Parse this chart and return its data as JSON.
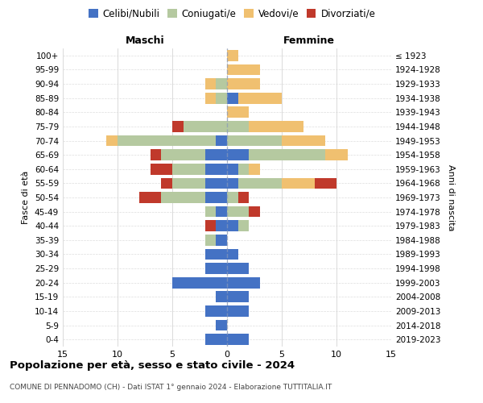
{
  "age_groups": [
    "0-4",
    "5-9",
    "10-14",
    "15-19",
    "20-24",
    "25-29",
    "30-34",
    "35-39",
    "40-44",
    "45-49",
    "50-54",
    "55-59",
    "60-64",
    "65-69",
    "70-74",
    "75-79",
    "80-84",
    "85-89",
    "90-94",
    "95-99",
    "100+"
  ],
  "birth_years": [
    "2019-2023",
    "2014-2018",
    "2009-2013",
    "2004-2008",
    "1999-2003",
    "1994-1998",
    "1989-1993",
    "1984-1988",
    "1979-1983",
    "1974-1978",
    "1969-1973",
    "1964-1968",
    "1959-1963",
    "1954-1958",
    "1949-1953",
    "1944-1948",
    "1939-1943",
    "1934-1938",
    "1929-1933",
    "1924-1928",
    "≤ 1923"
  ],
  "maschi": {
    "celibi": [
      2,
      1,
      2,
      1,
      5,
      2,
      2,
      1,
      1,
      1,
      2,
      2,
      2,
      2,
      1,
      0,
      0,
      0,
      0,
      0,
      0
    ],
    "coniugati": [
      0,
      0,
      0,
      0,
      0,
      0,
      0,
      1,
      0,
      1,
      4,
      3,
      3,
      4,
      9,
      4,
      0,
      1,
      1,
      0,
      0
    ],
    "vedovi": [
      0,
      0,
      0,
      0,
      0,
      0,
      0,
      0,
      0,
      0,
      0,
      0,
      0,
      0,
      1,
      0,
      0,
      1,
      1,
      0,
      0
    ],
    "divorziati": [
      0,
      0,
      0,
      0,
      0,
      0,
      0,
      0,
      1,
      0,
      2,
      1,
      2,
      1,
      0,
      1,
      0,
      0,
      0,
      0,
      0
    ]
  },
  "femmine": {
    "celibi": [
      2,
      0,
      2,
      2,
      3,
      2,
      1,
      0,
      1,
      0,
      0,
      1,
      1,
      2,
      0,
      0,
      0,
      1,
      0,
      0,
      0
    ],
    "coniugati": [
      0,
      0,
      0,
      0,
      0,
      0,
      0,
      0,
      1,
      2,
      1,
      4,
      1,
      7,
      5,
      2,
      0,
      0,
      0,
      0,
      0
    ],
    "vedovi": [
      0,
      0,
      0,
      0,
      0,
      0,
      0,
      0,
      0,
      0,
      0,
      3,
      1,
      2,
      4,
      5,
      2,
      4,
      3,
      3,
      1
    ],
    "divorziati": [
      0,
      0,
      0,
      0,
      0,
      0,
      0,
      0,
      0,
      1,
      1,
      2,
      0,
      0,
      0,
      0,
      0,
      0,
      0,
      0,
      0
    ]
  },
  "colors": {
    "celibi": "#4472c4",
    "coniugati": "#b5c9a0",
    "vedovi": "#f0c070",
    "divorziati": "#c0392b"
  },
  "xlim": 15,
  "title": "Popolazione per età, sesso e stato civile - 2024",
  "subtitle": "COMUNE DI PENNADOMO (CH) - Dati ISTAT 1° gennaio 2024 - Elaborazione TUTTITALIA.IT",
  "ylabel_left": "Fasce di età",
  "ylabel_right": "Anni di nascita",
  "xlabel_left": "Maschi",
  "xlabel_right": "Femmine",
  "legend_labels": [
    "Celibi/Nubili",
    "Coniugati/e",
    "Vedovi/e",
    "Divorziati/e"
  ],
  "background_color": "#ffffff",
  "grid_color": "#cccccc"
}
